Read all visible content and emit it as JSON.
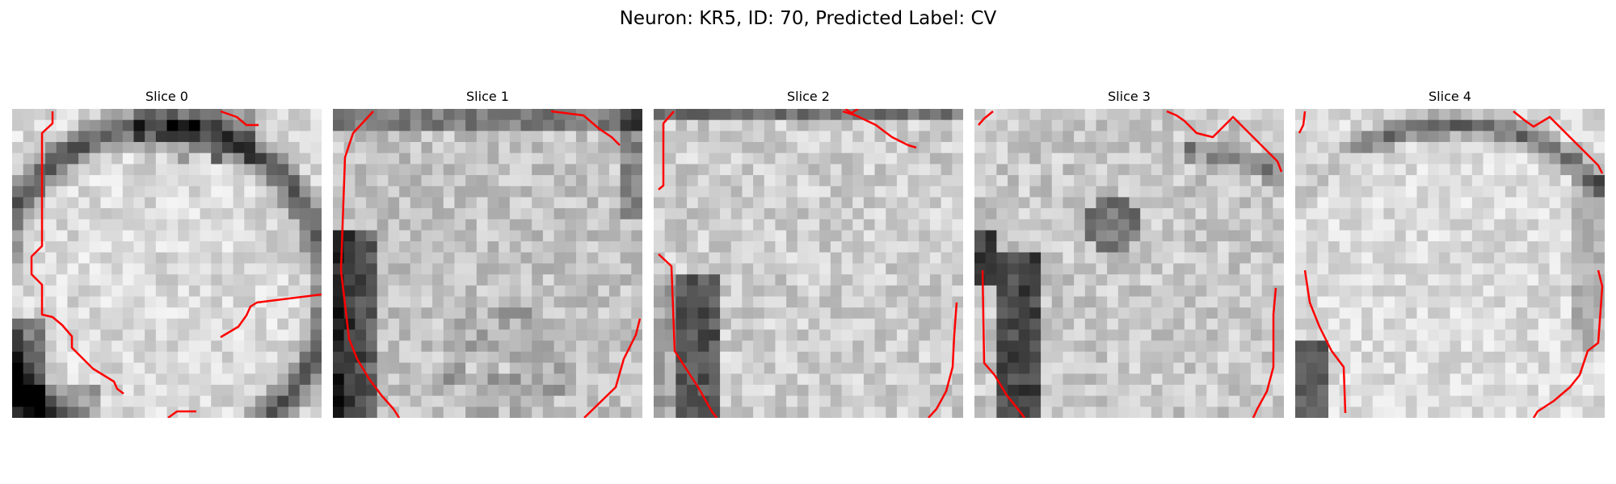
{
  "figure": {
    "title": "Neuron: KR5, ID: 70, Predicted Label: CV",
    "contour_color": "#ff0000",
    "colormap": "grayscale",
    "panels": [
      {
        "title": "Slice 0",
        "seed": 11,
        "pattern": "round-cell-dark-right-border"
      },
      {
        "title": "Slice 1",
        "seed": 23,
        "pattern": "cell-dark-left-border"
      },
      {
        "title": "Slice 2",
        "seed": 37,
        "pattern": "texture-dark-left-band"
      },
      {
        "title": "Slice 3",
        "seed": 51,
        "pattern": "texture-dark-left-band-dark-spot"
      },
      {
        "title": "Slice 4",
        "seed": 67,
        "pattern": "bright-texture-dark-right-border"
      }
    ]
  }
}
